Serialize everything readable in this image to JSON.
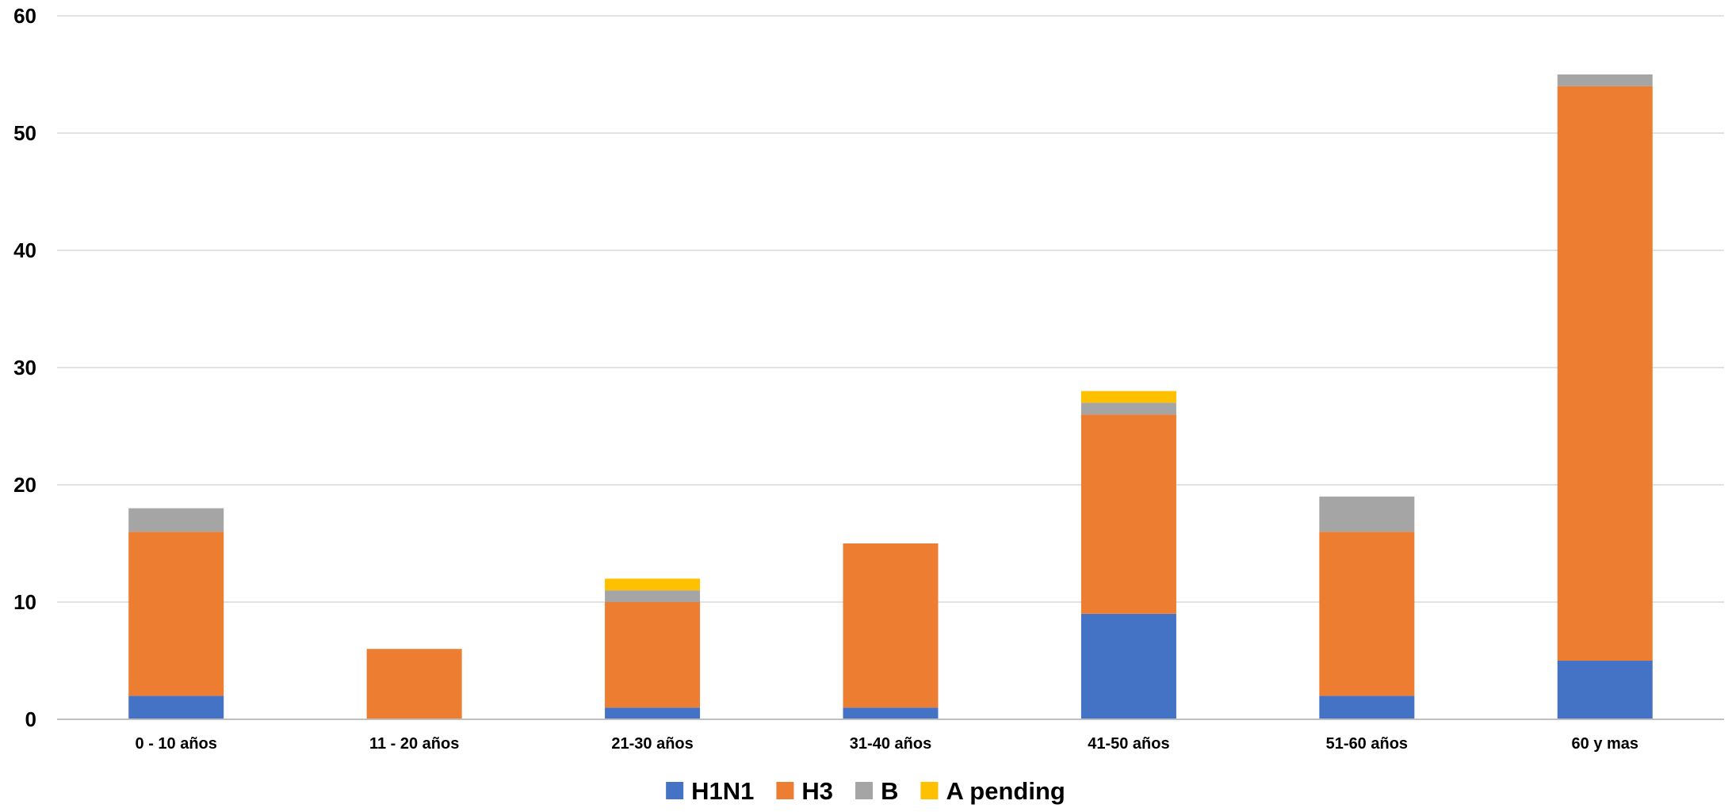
{
  "chart_data": {
    "type": "bar",
    "stacked": true,
    "title": "",
    "xlabel": "",
    "ylabel": "",
    "ylim": [
      0,
      60
    ],
    "yticks": [
      0,
      10,
      20,
      30,
      40,
      50,
      60
    ],
    "grid": true,
    "legend_position": "bottom",
    "categories": [
      "0 - 10 años",
      "11 - 20 años",
      "21-30 años",
      "31-40 años",
      "41-50 años",
      "51-60 años",
      "60 y mas"
    ],
    "series": [
      {
        "name": "H1N1",
        "color": "#4472C4",
        "values": [
          2,
          0,
          1,
          1,
          9,
          2,
          5
        ]
      },
      {
        "name": "H3",
        "color": "#ED7D31",
        "values": [
          14,
          6,
          9,
          14,
          17,
          14,
          49
        ]
      },
      {
        "name": "B",
        "color": "#A5A5A5",
        "values": [
          2,
          0,
          1,
          0,
          1,
          3,
          1
        ]
      },
      {
        "name": "A pending",
        "color": "#FFC000",
        "values": [
          0,
          0,
          1,
          0,
          1,
          0,
          0
        ]
      }
    ]
  }
}
